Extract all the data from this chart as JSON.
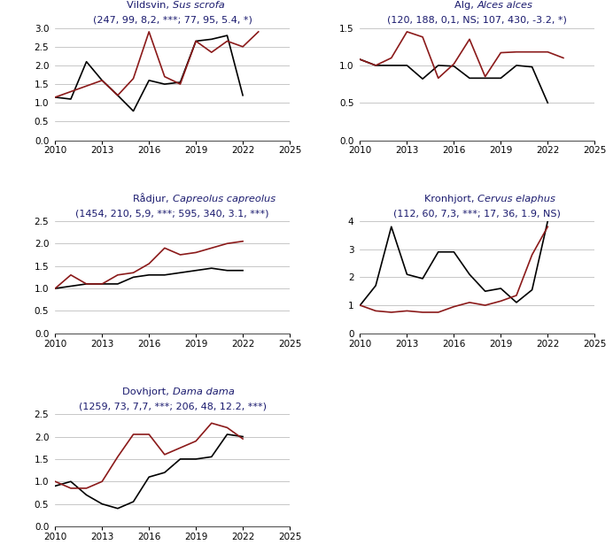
{
  "subplots": [
    {
      "title_normal": "Vildsvin, ",
      "title_italic": "Sus scrofa",
      "subtitle": "(247, 99, 8,2, ***; 77, 95, 5.4, *)",
      "ylim": [
        0.0,
        3.0
      ],
      "yticks": [
        0.0,
        0.5,
        1.0,
        1.5,
        2.0,
        2.5,
        3.0
      ],
      "years": [
        2010,
        2011,
        2012,
        2013,
        2014,
        2015,
        2016,
        2017,
        2018,
        2019,
        2020,
        2021,
        2022,
        2023
      ],
      "black_line": [
        1.15,
        1.1,
        2.1,
        1.6,
        1.2,
        0.78,
        1.6,
        1.5,
        1.55,
        2.65,
        2.7,
        2.8,
        1.2,
        null
      ],
      "red_line": [
        1.15,
        null,
        null,
        1.6,
        1.2,
        1.65,
        2.9,
        1.7,
        1.5,
        2.65,
        2.35,
        2.65,
        2.5,
        2.9
      ]
    },
    {
      "title_normal": "Älg, ",
      "title_italic": "Alces alces",
      "subtitle": "(120, 188, 0,1, NS; 107, 430, -3.2, *)",
      "ylim": [
        0.0,
        1.5
      ],
      "yticks": [
        0.0,
        0.5,
        1.0,
        1.5
      ],
      "years": [
        2010,
        2011,
        2012,
        2013,
        2014,
        2015,
        2016,
        2017,
        2018,
        2019,
        2020,
        2021,
        2022,
        2023
      ],
      "black_line": [
        1.08,
        1.0,
        1.0,
        1.0,
        0.82,
        1.0,
        0.99,
        0.83,
        0.83,
        0.83,
        1.0,
        0.98,
        0.5,
        null
      ],
      "red_line": [
        1.08,
        1.0,
        1.1,
        1.45,
        1.38,
        0.83,
        1.02,
        1.35,
        0.85,
        1.17,
        1.18,
        1.18,
        1.18,
        1.1
      ]
    },
    {
      "title_normal": "Rådjur, ",
      "title_italic": "Capreolus capreolus",
      "subtitle": "(1454, 210, 5,9, ***; 595, 340, 3.1, ***)",
      "ylim": [
        0.0,
        2.5
      ],
      "yticks": [
        0.0,
        0.5,
        1.0,
        1.5,
        2.0,
        2.5
      ],
      "years": [
        2010,
        2011,
        2012,
        2013,
        2014,
        2015,
        2016,
        2017,
        2018,
        2019,
        2020,
        2021,
        2022,
        2023
      ],
      "black_line": [
        1.0,
        1.05,
        1.1,
        1.1,
        1.1,
        1.25,
        1.3,
        1.3,
        1.35,
        1.4,
        1.45,
        1.4,
        1.4,
        null
      ],
      "red_line": [
        1.0,
        1.3,
        1.1,
        1.1,
        1.3,
        1.35,
        1.55,
        1.9,
        1.75,
        1.8,
        1.9,
        2.0,
        2.05,
        null
      ]
    },
    {
      "title_normal": "Kronhjort, ",
      "title_italic": "Cervus elaphus",
      "subtitle": "(112, 60, 7,3, ***; 17, 36, 1.9, NS)",
      "ylim": [
        0.0,
        4.0
      ],
      "yticks": [
        0,
        1,
        2,
        3,
        4
      ],
      "years": [
        2010,
        2011,
        2012,
        2013,
        2014,
        2015,
        2016,
        2017,
        2018,
        2019,
        2020,
        2021,
        2022,
        2023
      ],
      "black_line": [
        1.0,
        1.7,
        3.8,
        2.1,
        1.95,
        2.9,
        2.9,
        2.1,
        1.5,
        1.6,
        1.1,
        1.55,
        4.0,
        null
      ],
      "red_line": [
        1.0,
        0.8,
        0.75,
        0.8,
        0.75,
        0.75,
        0.95,
        1.1,
        1.0,
        1.15,
        1.35,
        2.8,
        3.8,
        null
      ]
    },
    {
      "title_normal": "Dovhjort, ",
      "title_italic": "Dama dama",
      "subtitle": "(1259, 73, 7,7, ***; 206, 48, 12.2, ***)",
      "ylim": [
        0.0,
        2.5
      ],
      "yticks": [
        0.0,
        0.5,
        1.0,
        1.5,
        2.0,
        2.5
      ],
      "years": [
        2010,
        2011,
        2012,
        2013,
        2014,
        2015,
        2016,
        2017,
        2018,
        2019,
        2020,
        2021,
        2022,
        2023
      ],
      "black_line": [
        0.9,
        1.0,
        0.7,
        0.5,
        0.4,
        0.55,
        1.1,
        1.2,
        1.5,
        1.5,
        1.55,
        2.05,
        2.0,
        null
      ],
      "red_line": [
        1.0,
        0.85,
        0.85,
        1.0,
        1.55,
        2.05,
        2.05,
        1.6,
        1.75,
        1.9,
        2.3,
        2.2,
        1.95,
        null
      ]
    }
  ],
  "black_color": "#000000",
  "red_color": "#8B1A1A",
  "line_width": 1.2,
  "background_color": "#ffffff",
  "grid_color": "#b0b0b0",
  "title_color": "#1a1a6e",
  "xlim": [
    2010,
    2025
  ],
  "xticks": [
    2010,
    2013,
    2016,
    2019,
    2022,
    2025
  ],
  "tick_fontsize": 7.5,
  "title_fontsize": 8.2,
  "subtitle_fontsize": 8.0
}
